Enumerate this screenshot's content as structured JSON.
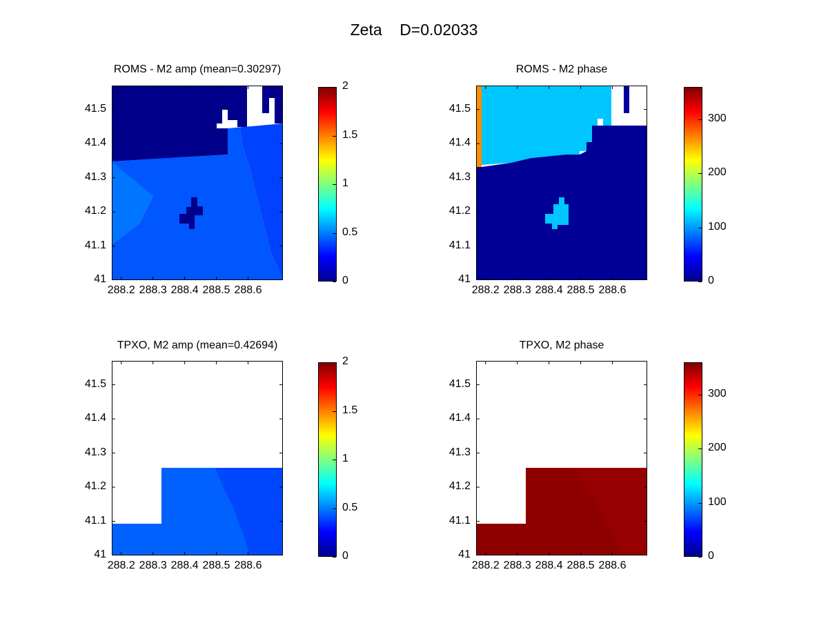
{
  "figure": {
    "title": "Zeta    D=0.02033"
  },
  "chart_data": [
    {
      "type": "heatmap",
      "title": "ROMS - M2 amp (mean=0.30297)",
      "x_ticks": [
        "288.2",
        "288.3",
        "288.4",
        "288.5",
        "288.6"
      ],
      "y_ticks": [
        "41",
        "41.1",
        "41.2",
        "41.3",
        "41.4",
        "41.5"
      ],
      "xlim": [
        288.17,
        288.71
      ],
      "ylim": [
        41.0,
        41.57
      ],
      "colorbar": {
        "ticks": [
          "0",
          "0.5",
          "1",
          "1.5",
          "2"
        ],
        "range": [
          0,
          2
        ],
        "colormap": "jet"
      },
      "regions": {
        "north_land": 0.02,
        "ocean_west": 0.48,
        "ocean_main": 0.42,
        "ocean_east": 0.38,
        "island": 0.02
      }
    },
    {
      "type": "heatmap",
      "title": "ROMS - M2 phase",
      "x_ticks": [
        "288.2",
        "288.3",
        "288.4",
        "288.5",
        "288.6"
      ],
      "y_ticks": [
        "41",
        "41.1",
        "41.2",
        "41.3",
        "41.4",
        "41.5"
      ],
      "xlim": [
        288.17,
        288.71
      ],
      "ylim": [
        41.0,
        41.57
      ],
      "colorbar": {
        "ticks": [
          "0",
          "100",
          "200",
          "300"
        ],
        "range": [
          0,
          360
        ],
        "colormap": "jet"
      },
      "regions": {
        "north_land": 115,
        "west_strip": 265,
        "ocean_main": 8,
        "island": 115,
        "east_inlets": 10
      }
    },
    {
      "type": "heatmap",
      "title": "TPXO, M2 amp (mean=0.42694)",
      "x_ticks": [
        "288.2",
        "288.3",
        "288.4",
        "288.5",
        "288.6"
      ],
      "y_ticks": [
        "41",
        "41.1",
        "41.2",
        "41.3",
        "41.4",
        "41.5"
      ],
      "xlim": [
        288.17,
        288.71
      ],
      "ylim": [
        41.0,
        41.57
      ],
      "colorbar": {
        "ticks": [
          "0",
          "0.5",
          "1",
          "1.5",
          "2"
        ],
        "range": [
          0,
          2
        ],
        "colormap": "jet"
      },
      "regions": {
        "ocean_main": 0.44,
        "ocean_east": 0.39
      }
    },
    {
      "type": "heatmap",
      "title": "TPXO, M2 phase",
      "x_ticks": [
        "288.2",
        "288.3",
        "288.4",
        "288.5",
        "288.6"
      ],
      "y_ticks": [
        "41",
        "41.1",
        "41.2",
        "41.3",
        "41.4",
        "41.5"
      ],
      "xlim": [
        288.17,
        288.71
      ],
      "ylim": [
        41.0,
        41.57
      ],
      "colorbar": {
        "ticks": [
          "0",
          "100",
          "200",
          "300"
        ],
        "range": [
          0,
          360
        ],
        "colormap": "jet"
      },
      "regions": {
        "ocean_main": 355,
        "ocean_east": 352
      }
    }
  ]
}
